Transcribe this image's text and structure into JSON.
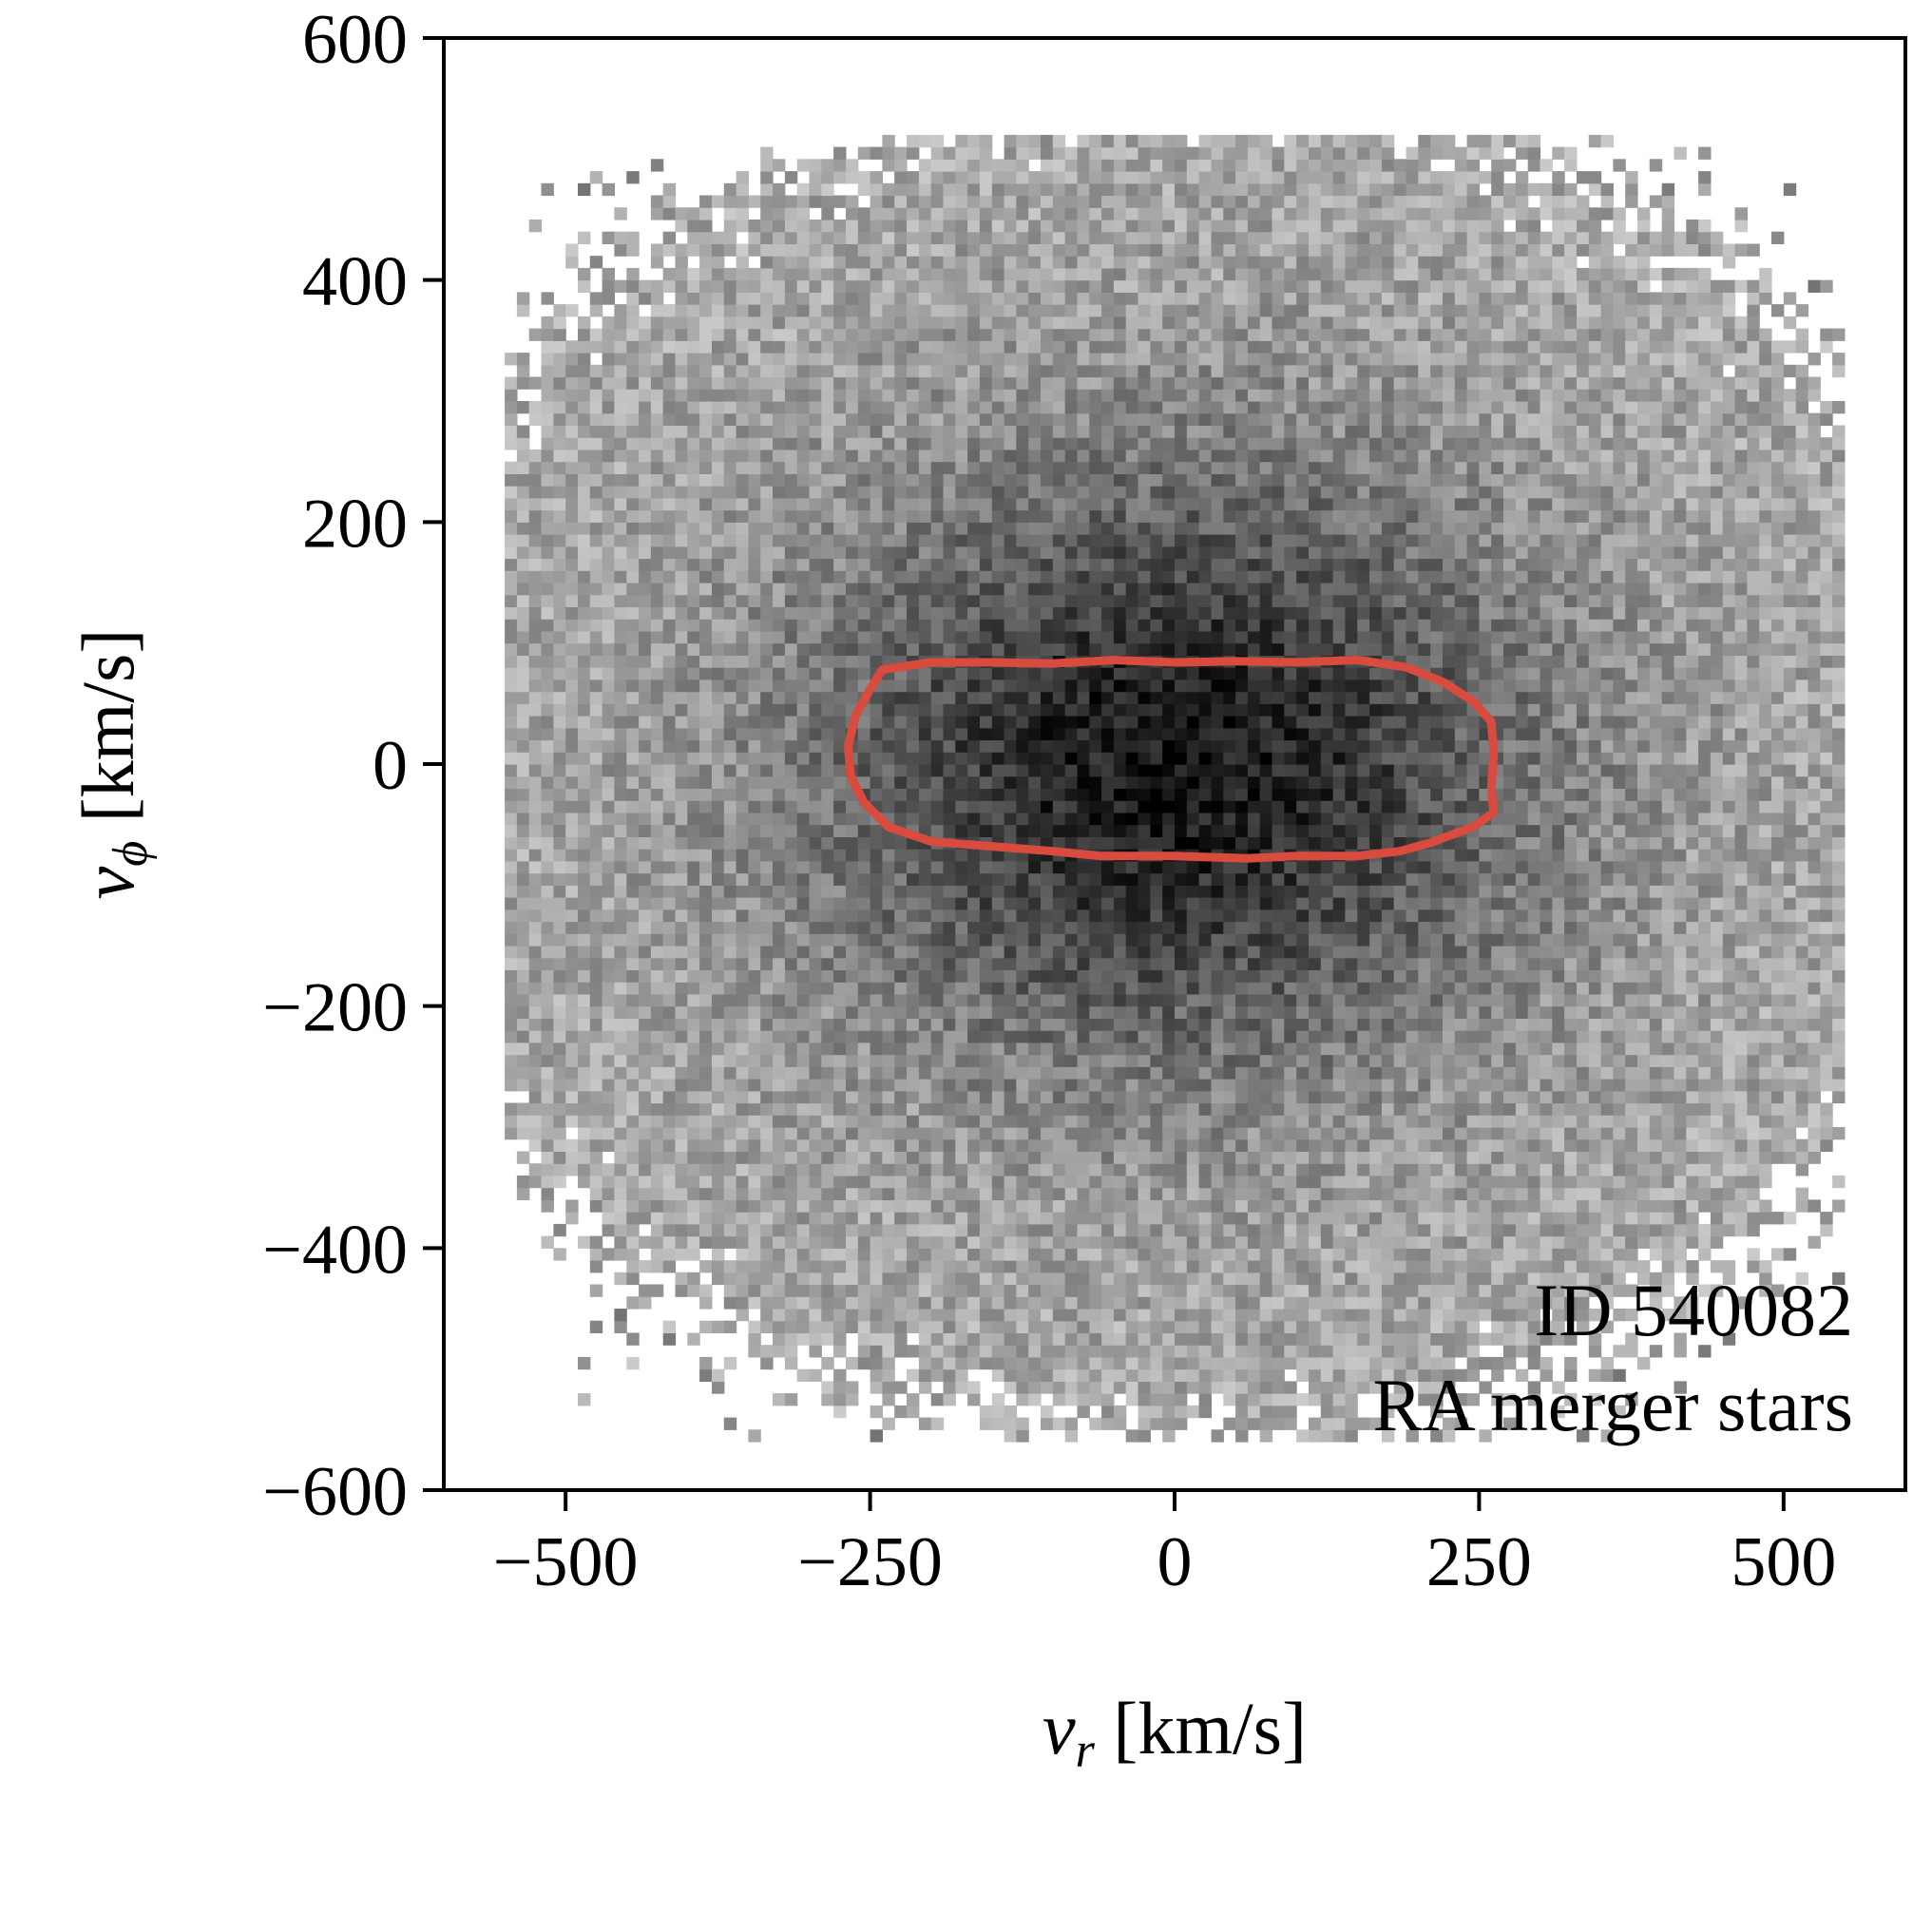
{
  "chart_data": {
    "type": "heatmap",
    "xlabel": {
      "var": "v",
      "sub": "r",
      "unit": " [km/s]"
    },
    "ylabel": {
      "var": "v",
      "sub": "ϕ",
      "unit": " [km/s]"
    },
    "xlim": [
      -600,
      600
    ],
    "ylim": [
      -600,
      600
    ],
    "xticks": [
      -500,
      -250,
      0,
      250,
      500
    ],
    "xtick_labels": [
      "−500",
      "−250",
      "0",
      "250",
      "500"
    ],
    "yticks": [
      -600,
      -400,
      -200,
      0,
      200,
      400,
      600
    ],
    "ytick_labels": [
      "−600",
      "−400",
      "−200",
      "0",
      "200",
      "400",
      "600"
    ],
    "grid": false,
    "colormap": "greys",
    "density_model": {
      "type": "gaussian",
      "center_vr": 0,
      "center_vphi": 0,
      "sigma_vr": 150,
      "sigma_vphi": 125,
      "bin_width_kms": 10
    },
    "contour": {
      "color": "#d94a3f",
      "points": [
        [
          -240,
          78
        ],
        [
          -200,
          84
        ],
        [
          -150,
          84
        ],
        [
          -100,
          83
        ],
        [
          -50,
          86
        ],
        [
          0,
          84
        ],
        [
          50,
          85
        ],
        [
          100,
          84
        ],
        [
          150,
          86
        ],
        [
          190,
          80
        ],
        [
          220,
          68
        ],
        [
          245,
          52
        ],
        [
          260,
          35
        ],
        [
          262,
          10
        ],
        [
          260,
          -20
        ],
        [
          262,
          -40
        ],
        [
          245,
          -52
        ],
        [
          210,
          -65
        ],
        [
          185,
          -72
        ],
        [
          150,
          -76
        ],
        [
          100,
          -76
        ],
        [
          60,
          -78
        ],
        [
          0,
          -76
        ],
        [
          -60,
          -76
        ],
        [
          -100,
          -72
        ],
        [
          -150,
          -68
        ],
        [
          -200,
          -64
        ],
        [
          -235,
          -52
        ],
        [
          -255,
          -32
        ],
        [
          -266,
          -10
        ],
        [
          -268,
          15
        ],
        [
          -262,
          40
        ],
        [
          -250,
          62
        ]
      ]
    },
    "annotations": [
      "ID 540082",
      "RA merger stars"
    ]
  }
}
